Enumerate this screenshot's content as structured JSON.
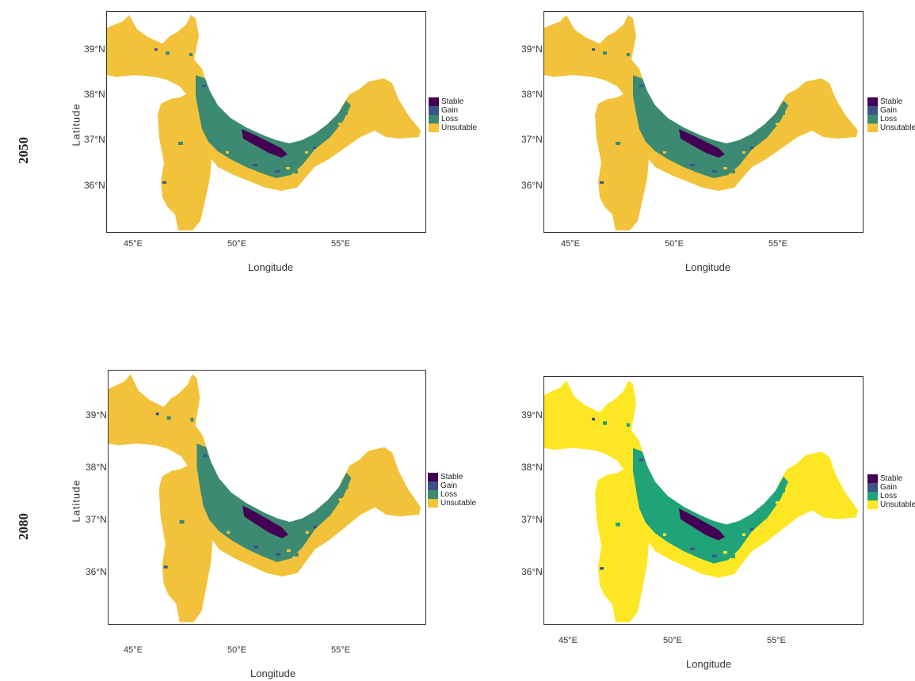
{
  "row_labels": [
    "2050",
    "2080"
  ],
  "colors": {
    "stable": "#440154",
    "gain": "#3b528b",
    "loss": "#3c8a72",
    "loss_bright": "#21a37a",
    "unsuitable": "#f2c23a",
    "unsuitable_bright": "#fde725"
  },
  "panels": [
    {
      "y_title": "Latitude",
      "y_ticks": [
        "39°N",
        "38°N",
        "37°N",
        "36°N"
      ],
      "x_ticks": [
        "45°E",
        "50°E",
        "55°E"
      ],
      "x_title": "Longitude",
      "legend": [
        "Stable",
        "Gain",
        "Loss",
        "Unsutable"
      ],
      "palette": "muted"
    },
    {
      "y_title": "",
      "y_ticks": [
        "39°N",
        "38°N",
        "37°N",
        "36°N"
      ],
      "x_ticks": [
        "45°E",
        "50°E",
        "55°E"
      ],
      "x_title": "Longitude",
      "legend": [
        "Stable",
        "Gain",
        "Loss",
        "Unsutable"
      ],
      "palette": "muted"
    },
    {
      "y_title": "Latitude",
      "y_ticks": [
        "39°N",
        "38°N",
        "37°N",
        "36°N"
      ],
      "x_ticks": [
        "45°E",
        "50°E",
        "55°E"
      ],
      "x_title": "Longitude",
      "legend": [
        "Stable",
        "Gain",
        "Loss",
        "Unsutable"
      ],
      "palette": "muted"
    },
    {
      "y_title": "",
      "y_ticks": [
        "39°N",
        "38°N",
        "37°N",
        "36°N"
      ],
      "x_ticks": [
        "45°E",
        "50°E",
        "55°E"
      ],
      "x_title": "Longitude",
      "legend": [
        "Stable",
        "Gain",
        "Loss",
        "Unsutable"
      ],
      "palette": "bright"
    }
  ]
}
